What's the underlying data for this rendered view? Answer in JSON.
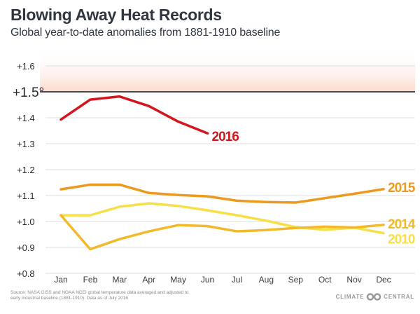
{
  "header": {
    "title": "Blowing Away Heat Records",
    "subtitle": "Global year-to-date anomalies from 1881-1910 baseline"
  },
  "footer": {
    "source": "Source: NASA GISS and NOAA NCEI global temperature data averaged and adjusted to early industrial baseline (1881-1910). Data as of July 2016",
    "brand_left": "CLIMATE",
    "brand_right": "CENTRAL",
    "brand_logo_icon": "climate-central-logo-icon"
  },
  "chart_data": {
    "type": "line",
    "title": "Blowing Away Heat Records",
    "subtitle": "Global year-to-date anomalies from 1881-1910 baseline",
    "xlabel": "",
    "ylabel": "",
    "x": [
      "Jan",
      "Feb",
      "Mar",
      "Apr",
      "May",
      "Jun",
      "Jul",
      "Aug",
      "Sep",
      "Oct",
      "Nov",
      "Dec"
    ],
    "ylim": [
      0.8,
      1.65
    ],
    "yticks": [
      {
        "value": 0.8,
        "label": "+0.8"
      },
      {
        "value": 0.9,
        "label": "+0.9"
      },
      {
        "value": 1.0,
        "label": "+1.0"
      },
      {
        "value": 1.1,
        "label": "+1.1"
      },
      {
        "value": 1.2,
        "label": "+1.2"
      },
      {
        "value": 1.3,
        "label": "+1.3"
      },
      {
        "value": 1.4,
        "label": "+1.4"
      },
      {
        "value": 1.5,
        "label": "+1.5°",
        "emphasis": true
      },
      {
        "value": 1.6,
        "label": "+1.6"
      }
    ],
    "grid": true,
    "threshold": {
      "value": 1.5,
      "label": "+1.5°",
      "band_color": "#fdd9cc",
      "line_color": "#4a4a4a"
    },
    "legend": "inline-right",
    "series": [
      {
        "name": "2016",
        "color": "#d4151e",
        "values": [
          1.393,
          1.47,
          1.482,
          1.445,
          1.385,
          1.34,
          null,
          null,
          null,
          null,
          null,
          null
        ]
      },
      {
        "name": "2015",
        "color": "#ec9a1e",
        "values": [
          1.124,
          1.142,
          1.142,
          1.11,
          1.102,
          1.097,
          1.08,
          1.075,
          1.073,
          1.09,
          1.107,
          1.125
        ]
      },
      {
        "name": "2014",
        "color": "#f2b92a",
        "values": [
          1.024,
          0.893,
          0.932,
          0.962,
          0.986,
          0.982,
          0.962,
          0.967,
          0.975,
          0.98,
          0.977,
          0.987
        ]
      },
      {
        "name": "2010",
        "color": "#f7e047",
        "values": [
          1.024,
          1.024,
          1.057,
          1.07,
          1.06,
          1.043,
          1.024,
          1.003,
          0.978,
          0.968,
          0.976,
          0.955
        ]
      }
    ]
  }
}
